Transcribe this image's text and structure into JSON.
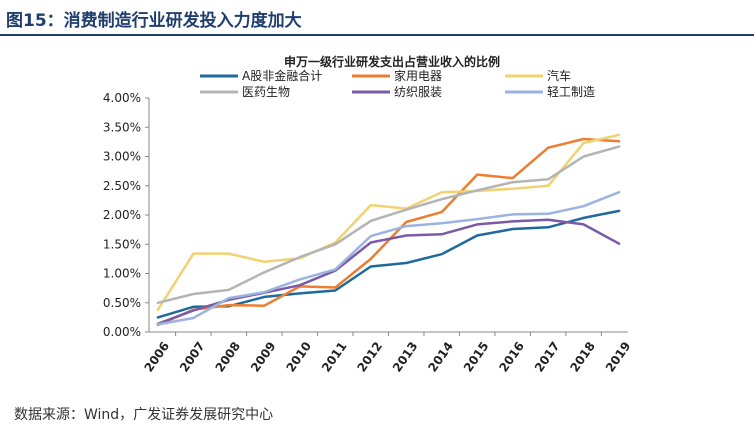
{
  "figure": {
    "title": "图15：消费制造行业研发投入力度加大",
    "source": "数据来源：Wind，广发证券发展研究中心"
  },
  "chart_data": {
    "type": "line",
    "title": "申万一级行业研发支出占营业收入的比例",
    "xlabel": "",
    "ylabel": "",
    "x": [
      "2006",
      "2007",
      "2008",
      "2009",
      "2010",
      "2011",
      "2012",
      "2013",
      "2014",
      "2015",
      "2016",
      "2017",
      "2018",
      "2019"
    ],
    "ylim": [
      0,
      4.0
    ],
    "yticks": [
      0,
      0.5,
      1.0,
      1.5,
      2.0,
      2.5,
      3.0,
      3.5,
      4.0
    ],
    "ytick_labels": [
      "0.00%",
      "0.50%",
      "1.00%",
      "1.50%",
      "2.00%",
      "2.50%",
      "3.00%",
      "3.50%",
      "4.00%"
    ],
    "grid": false,
    "legend_position": "top",
    "series": [
      {
        "name": "A股非金融合计",
        "color": "#1f6a9c",
        "values": [
          0.25,
          0.43,
          0.44,
          0.6,
          0.66,
          0.71,
          1.12,
          1.18,
          1.33,
          1.65,
          1.76,
          1.79,
          1.95,
          2.07
        ]
      },
      {
        "name": "家用电器",
        "color": "#ed7d31",
        "values": [
          0.12,
          0.38,
          0.46,
          0.45,
          0.78,
          0.76,
          1.25,
          1.88,
          2.05,
          2.69,
          2.63,
          3.15,
          3.3,
          3.26
        ]
      },
      {
        "name": "汽车",
        "color": "#f0d272",
        "values": [
          0.38,
          1.34,
          1.34,
          1.2,
          1.26,
          1.53,
          2.17,
          2.11,
          2.39,
          2.41,
          2.45,
          2.5,
          3.23,
          3.37
        ]
      },
      {
        "name": "医药生物",
        "color": "#b4b4b4",
        "values": [
          0.5,
          0.65,
          0.72,
          1.02,
          1.28,
          1.5,
          1.9,
          2.09,
          2.27,
          2.42,
          2.56,
          2.61,
          3.0,
          3.17
        ]
      },
      {
        "name": "纺织服装",
        "color": "#7a5aa6",
        "values": [
          0.14,
          0.37,
          0.55,
          0.67,
          0.8,
          1.05,
          1.53,
          1.65,
          1.67,
          1.84,
          1.89,
          1.92,
          1.84,
          1.51
        ]
      },
      {
        "name": "轻工制造",
        "color": "#9bb3e0",
        "values": [
          0.13,
          0.24,
          0.58,
          0.68,
          0.9,
          1.07,
          1.64,
          1.81,
          1.86,
          1.93,
          2.01,
          2.02,
          2.15,
          2.39
        ]
      }
    ]
  }
}
